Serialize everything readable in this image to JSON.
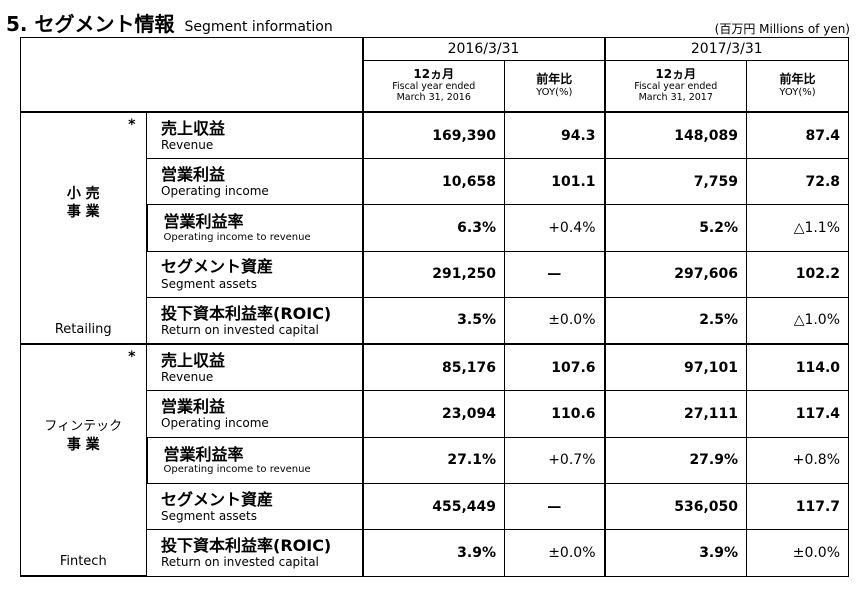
{
  "header": {
    "title_jp": "5. セグメント情報",
    "title_en": "Segment information",
    "unit": "(百万円  Millions of yen)"
  },
  "periods": [
    {
      "label": "2016/3/31",
      "col1_jp": "12ヵ月",
      "col1_en1": "Fiscal year ended",
      "col1_en2": "March 31, 2016",
      "col2_jp": "前年比",
      "col2_en": "YOY(%)"
    },
    {
      "label": "2017/3/31",
      "col1_jp": "12ヵ月",
      "col1_en1": "Fiscal year ended",
      "col1_en2": "March 31, 2017",
      "col2_jp": "前年比",
      "col2_en": "YOY(%)"
    }
  ],
  "segments": [
    {
      "name_jp_line1": "小 売",
      "name_jp_line2": "事 業",
      "name_en": "Retailing",
      "star": "*",
      "rows": [
        {
          "label_jp": "売上収益",
          "label_en": "Revenue",
          "v1": "169,390",
          "y1": "94.3",
          "v2": "148,089",
          "y2": "87.4"
        },
        {
          "label_jp": "営業利益",
          "label_en": "Operating income",
          "v1": "10,658",
          "y1": "101.1",
          "v2": "7,759",
          "y2": "72.8"
        },
        {
          "label_jp": "営業利益率",
          "label_en": "Operating income to revenue",
          "v1": "6.3%",
          "y1": "+0.4%",
          "v2": "5.2%",
          "y2": "△1.1%"
        },
        {
          "label_jp": "セグメント資産",
          "label_en": "Segment assets",
          "v1": "291,250",
          "y1": "—",
          "v2": "297,606",
          "y2": "102.2"
        },
        {
          "label_jp": "投下資本利益率(ROIC)",
          "label_en": "Return on invested capital",
          "v1": "3.5%",
          "y1": "±0.0%",
          "v2": "2.5%",
          "y2": "△1.0%"
        }
      ]
    },
    {
      "name_jp_line1": "フィンテック",
      "name_jp_line2": "事 業",
      "name_en": "Fintech",
      "star": "*",
      "rows": [
        {
          "label_jp": "売上収益",
          "label_en": "Revenue",
          "v1": "85,176",
          "y1": "107.6",
          "v2": "97,101",
          "y2": "114.0"
        },
        {
          "label_jp": "営業利益",
          "label_en": "Operating income",
          "v1": "23,094",
          "y1": "110.6",
          "v2": "27,111",
          "y2": "117.4"
        },
        {
          "label_jp": "営業利益率",
          "label_en": "Operating income to revenue",
          "v1": "27.1%",
          "y1": "+0.7%",
          "v2": "27.9%",
          "y2": "+0.8%"
        },
        {
          "label_jp": "セグメント資産",
          "label_en": "Segment assets",
          "v1": "455,449",
          "y1": "—",
          "v2": "536,050",
          "y2": "117.7"
        },
        {
          "label_jp": "投下資本利益率(ROIC)",
          "label_en": "Return on invested capital",
          "v1": "3.9%",
          "y1": "±0.0%",
          "v2": "3.9%",
          "y2": "±0.0%"
        }
      ]
    }
  ]
}
